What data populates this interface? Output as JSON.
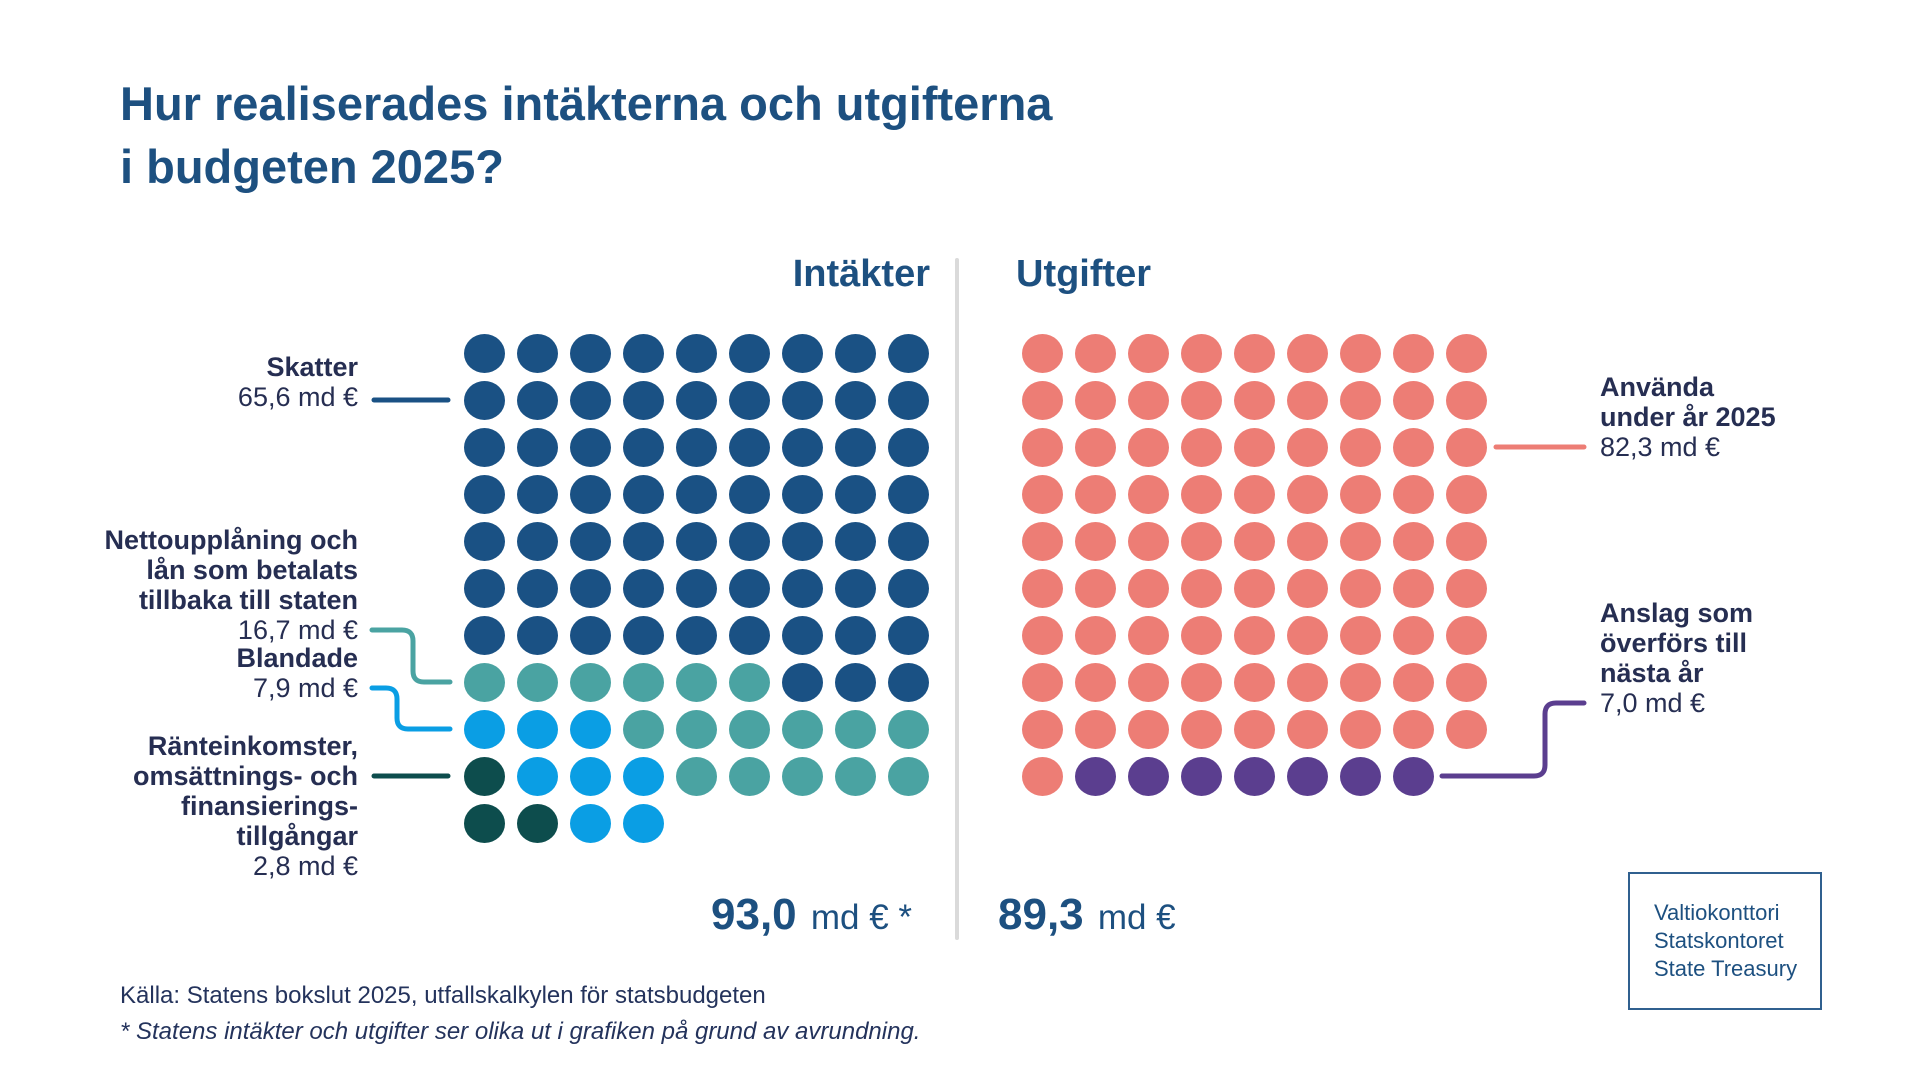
{
  "title": {
    "line1": "Hur realiserades intäkterna och utgifterna",
    "line2": "i budgeten 2025?"
  },
  "colors": {
    "B": "#1a5184",
    "T": "#4aa3a2",
    "L": "#0a9ee4",
    "G": "#0d4d4d",
    "S": "#ed7d75",
    "P": "#5b3e8f",
    "accent_blue": "#1d5080",
    "navy_text": "#262e52",
    "divider_gray": "#dadada"
  },
  "income": {
    "heading": "Intäkter",
    "total_value": "93,0",
    "total_unit": "md € *",
    "legend": [
      {
        "label_lines": [
          "Skatter"
        ],
        "value": "65,6 md €",
        "color_key": "B"
      },
      {
        "label_lines": [
          "Nettoupplåning och",
          "lån som betalats",
          "tillbaka till staten"
        ],
        "value": "16,7 md €",
        "color_key": "T"
      },
      {
        "label_lines": [
          "Blandade"
        ],
        "value": "7,9 md €",
        "color_key": "L"
      },
      {
        "label_lines": [
          "Ränteinkomster,",
          "omsättnings- och",
          "finansierings-",
          "tillgångar"
        ],
        "value": "2,8 md €",
        "color_key": "G"
      }
    ],
    "grid": [
      "BBBBBBBBB",
      "BBBBBBBBB",
      "BBBBBBBBB",
      "BBBBBBBBB",
      "BBBBBBBBB",
      "BBBBBBBBB",
      "BBBBBBBBB",
      "TTTTTTBBB",
      "LLLTTTTTT",
      "GLLLTTTTT",
      "GGLL"
    ]
  },
  "expenses": {
    "heading": "Utgifter",
    "total_value": "89,3",
    "total_unit": "md €",
    "legend": [
      {
        "label_lines": [
          "Använda",
          "under år 2025"
        ],
        "value": "82,3 md €",
        "color_key": "S"
      },
      {
        "label_lines": [
          "Anslag som",
          "överförs till",
          "nästa år"
        ],
        "value": "7,0 md €",
        "color_key": "P"
      }
    ],
    "grid": [
      "SSSSSSSSS",
      "SSSSSSSSS",
      "SSSSSSSSS",
      "SSSSSSSSS",
      "SSSSSSSSS",
      "SSSSSSSSS",
      "SSSSSSSSS",
      "SSSSSSSSS",
      "SSSSSSSSS",
      "SPPPPPPP"
    ]
  },
  "footer": {
    "source": "Källa: Statens bokslut 2025, utfallskalkylen för statsbudgeten",
    "note": "* Statens intäkter och utgifter ser olika ut i grafiken på grund av avrundning."
  },
  "logo": {
    "lines": [
      "Valtiokonttori",
      "Statskontoret",
      "State Treasury"
    ]
  },
  "chart_data": {
    "type": "waffle",
    "unit_per_dot": "1 md €",
    "title": "Hur realiserades intäkterna och utgifterna i budgeten 2025?",
    "legend_position": "left-and-right",
    "panels": [
      {
        "name": "Intäkter",
        "total": 93.0,
        "total_label": "93,0 md € *",
        "grid_columns": 9,
        "grid_rows": 11,
        "categories": [
          {
            "label": "Skatter",
            "value": 65.6,
            "dots": 66,
            "color": "#1a5184"
          },
          {
            "label": "Nettoupplåning och lån som betalats tillbaka till staten",
            "value": 16.7,
            "dots": 17,
            "color": "#4aa3a2"
          },
          {
            "label": "Blandade",
            "value": 7.9,
            "dots": 8,
            "color": "#0a9ee4"
          },
          {
            "label": "Ränteinkomster, omsättnings- och finansieringstillgångar",
            "value": 2.8,
            "dots": 3,
            "color": "#0d4d4d"
          }
        ]
      },
      {
        "name": "Utgifter",
        "total": 89.3,
        "total_label": "89,3 md €",
        "grid_columns": 9,
        "grid_rows": 10,
        "categories": [
          {
            "label": "Använda under år 2025",
            "value": 82.3,
            "dots": 82,
            "color": "#ed7d75"
          },
          {
            "label": "Anslag som överförs till nästa år",
            "value": 7.0,
            "dots": 7,
            "color": "#5b3e8f"
          }
        ]
      }
    ],
    "note": "* Statens intäkter och utgifter ser olika ut i grafiken på grund av avrundning."
  }
}
